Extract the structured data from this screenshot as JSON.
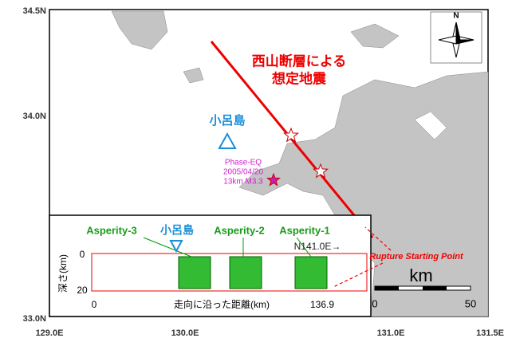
{
  "axes": {
    "y_labels": [
      "34.5N",
      "34.0N",
      "33.0N"
    ],
    "x_labels": [
      "129.0E",
      "130.0E",
      "131.0E",
      "131.5E"
    ]
  },
  "compass": "N",
  "title": [
    "西山断層による",
    "想定地震"
  ],
  "island": "小呂島",
  "phase_eq": [
    "Phase-EQ",
    "2005/04/20",
    "13km M3.3"
  ],
  "inset": {
    "asperities": [
      "Asperity-3",
      "Asperity-2",
      "Asperity-1"
    ],
    "island": "小呂島",
    "strike": "N141.0E→",
    "depth_label": "深さ(km)",
    "depth_ticks": [
      "0",
      "20"
    ],
    "distance_label": "走向に沿った距離(km)",
    "distance_ticks": [
      "0",
      "136.9"
    ]
  },
  "rupture_label": "Rupture Starting Point",
  "scale": {
    "unit": "km",
    "ticks": [
      "0",
      "50"
    ]
  }
}
